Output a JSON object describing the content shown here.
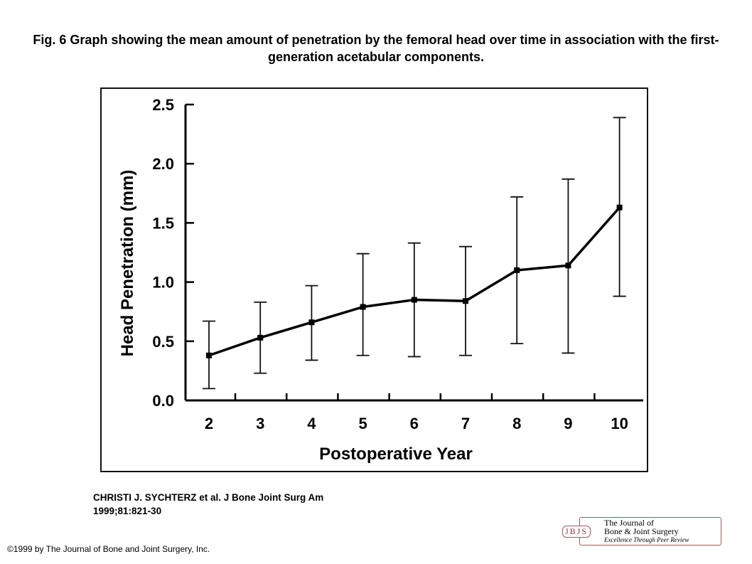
{
  "caption": "Fig. 6 Graph showing the mean amount of penetration by the femoral head over time in association with the first-generation acetabular components.",
  "citation_line1": "CHRISTI J. SYCHTERZ et al. J Bone Joint Surg Am",
  "citation_line2": "1999;81:821-30",
  "copyright": "©1999 by The Journal of Bone and Joint Surgery, Inc.",
  "logo": {
    "mark": "JBJS",
    "line1": "The Journal of",
    "line2": "Bone & Joint Surgery",
    "line3": "Excellence Through Peer Review"
  },
  "chart_data": {
    "type": "line",
    "title": "",
    "xlabel": "Postoperative Year",
    "ylabel": "Head Penetration (mm)",
    "x": [
      2,
      3,
      4,
      5,
      6,
      7,
      8,
      9,
      10
    ],
    "x_tick_labels": [
      "2",
      "3",
      "4",
      "5",
      "6",
      "7",
      "8",
      "9",
      "10"
    ],
    "y_tick_labels": [
      "0.0",
      "0.5",
      "1.0",
      "1.5",
      "2.0",
      "2.5"
    ],
    "ylim": [
      0,
      2.5
    ],
    "grid": false,
    "series": [
      {
        "values": [
          0.38,
          0.53,
          0.66,
          0.79,
          0.85,
          0.84,
          1.1,
          1.14,
          1.63
        ],
        "error_low": [
          0.1,
          0.23,
          0.34,
          0.38,
          0.37,
          0.38,
          0.48,
          0.4,
          0.88
        ],
        "error_high": [
          0.67,
          0.83,
          0.97,
          1.24,
          1.33,
          1.3,
          1.72,
          1.87,
          2.39
        ]
      }
    ]
  }
}
